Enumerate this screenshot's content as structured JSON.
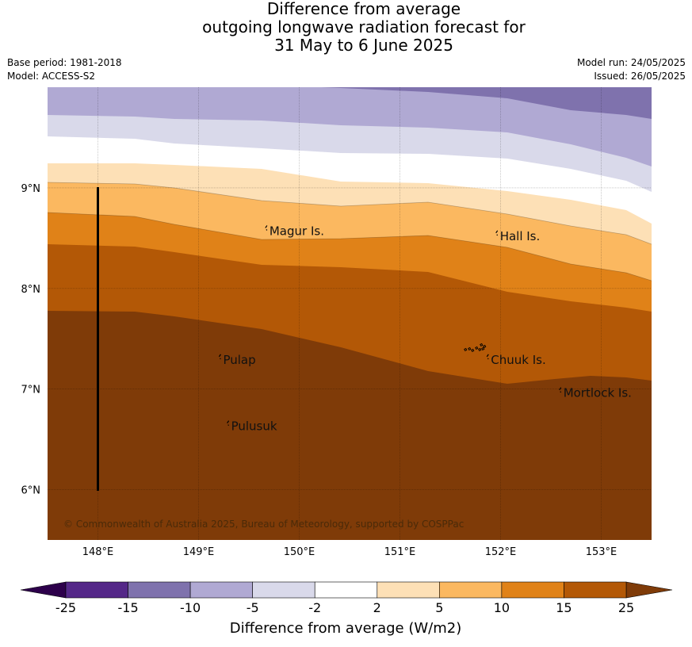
{
  "title": {
    "line1": "Difference from average",
    "line2": "outgoing longwave radiation forecast for",
    "line3": "31 May to 6 June 2025"
  },
  "meta": {
    "base_period": "Base period: 1981-2018",
    "model": "Model: ACCESS-S2",
    "model_run": "Model run: 24/05/2025",
    "issued": "Issued: 26/05/2025"
  },
  "map": {
    "lon_range": [
      147.5,
      153.5
    ],
    "lat_range": [
      5.5,
      10.0
    ],
    "lon_ticks": [
      148,
      149,
      150,
      151,
      152,
      153
    ],
    "lon_tick_labels": [
      "148°E",
      "149°E",
      "150°E",
      "151°E",
      "152°E",
      "153°E"
    ],
    "lat_ticks": [
      6,
      7,
      8,
      9
    ],
    "lat_tick_labels": [
      "6°N",
      "7°N",
      "8°N",
      "9°N"
    ],
    "gridlines": true,
    "places": [
      {
        "name": "Magur Is.",
        "lon": 149.68,
        "lat": 8.57
      },
      {
        "name": "Hall Is.",
        "lon": 151.97,
        "lat": 8.52
      },
      {
        "name": "Pulap",
        "lon": 149.22,
        "lat": 7.29
      },
      {
        "name": "Chuuk Is.",
        "lon": 151.88,
        "lat": 7.29
      },
      {
        "name": "Mortlock Is.",
        "lon": 152.6,
        "lat": 6.96
      },
      {
        "name": "Pulusuk",
        "lon": 149.3,
        "lat": 6.63
      }
    ],
    "credit": "© Commonwealth of Australia 2025, Bureau of Meteorology, supported by COSPPac",
    "bands_description_colors": [
      "#7f72ad",
      "#b0a9d3",
      "#d9d9ea",
      "#ffffff",
      "#fde0b6",
      "#fbb860",
      "#e08218",
      "#b35806",
      "#7f3b08"
    ]
  },
  "colorbar": {
    "ticks": [
      "-25",
      "-15",
      "-10",
      "-5",
      "-2",
      "2",
      "5",
      "10",
      "15",
      "25"
    ],
    "colors": [
      "#542788",
      "#7f72ad",
      "#b0a9d3",
      "#d9d9ea",
      "#ffffff",
      "#fde0b6",
      "#fbb860",
      "#e08218",
      "#b35806"
    ],
    "under_color": "#2d004b",
    "over_color": "#7f3b08",
    "label": "Difference from average (W/m2)"
  }
}
